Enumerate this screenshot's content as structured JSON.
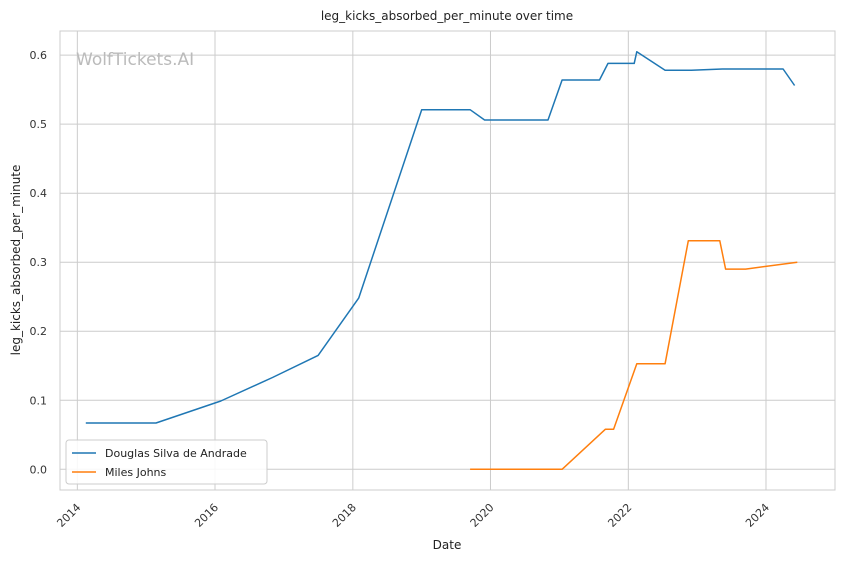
{
  "chart_data": {
    "type": "line",
    "title": "leg_kicks_absorbed_per_minute over time",
    "xlabel": "Date",
    "ylabel": "leg_kicks_absorbed_per_minute",
    "watermark": "WolfTickets.AI",
    "x_axis": {
      "type": "date",
      "range": [
        "2013-10-01",
        "2025-01-01"
      ],
      "ticks": [
        "2014",
        "2016",
        "2018",
        "2020",
        "2022",
        "2024"
      ]
    },
    "y_axis": {
      "range": [
        -0.03,
        0.635
      ],
      "ticks": [
        "0.0",
        "0.1",
        "0.2",
        "0.3",
        "0.4",
        "0.5",
        "0.6"
      ]
    },
    "grid": true,
    "legend_position": "lower-left",
    "series": [
      {
        "name": "Douglas Silva de Andrade",
        "color": "#1f77b4",
        "points": [
          [
            "2014-02-15",
            0.067
          ],
          [
            "2015-02-22",
            0.067
          ],
          [
            "2016-02-01",
            0.099
          ],
          [
            "2016-11-01",
            0.133
          ],
          [
            "2017-07-01",
            0.165
          ],
          [
            "2018-02-01",
            0.248
          ],
          [
            "2019-01-01",
            0.521
          ],
          [
            "2019-09-15",
            0.521
          ],
          [
            "2019-12-01",
            0.506
          ],
          [
            "2020-11-01",
            0.506
          ],
          [
            "2021-01-15",
            0.564
          ],
          [
            "2021-08-01",
            0.564
          ],
          [
            "2021-09-15",
            0.588
          ],
          [
            "2022-02-01",
            0.588
          ],
          [
            "2022-02-15",
            0.605
          ],
          [
            "2022-07-15",
            0.578
          ],
          [
            "2022-12-01",
            0.578
          ],
          [
            "2023-05-15",
            0.58
          ],
          [
            "2024-04-01",
            0.58
          ],
          [
            "2024-06-01",
            0.556
          ]
        ]
      },
      {
        "name": "Miles Johns",
        "color": "#ff7f0e",
        "points": [
          [
            "2019-09-15",
            0.0
          ],
          [
            "2021-01-15",
            0.0
          ],
          [
            "2021-09-01",
            0.058
          ],
          [
            "2021-10-15",
            0.058
          ],
          [
            "2022-02-15",
            0.153
          ],
          [
            "2022-07-15",
            0.153
          ],
          [
            "2022-11-15",
            0.331
          ],
          [
            "2023-05-01",
            0.331
          ],
          [
            "2023-06-01",
            0.29
          ],
          [
            "2023-09-15",
            0.29
          ],
          [
            "2024-06-15",
            0.3
          ]
        ]
      }
    ]
  }
}
